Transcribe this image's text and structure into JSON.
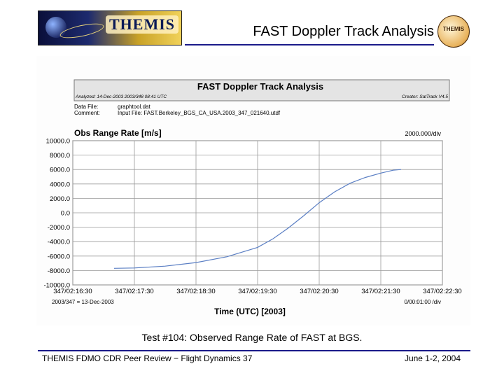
{
  "slide": {
    "logo_text": "THEMIS",
    "title": "FAST Doppler Track Analysis",
    "badge_text": "THEMIS",
    "caption": "Test #104: Observed Range Rate of FAST at BGS.",
    "footer_left": "THEMIS FDMO CDR Peer Review − Flight Dynamics 37",
    "footer_right": "June 1-2, 2004",
    "accent_color": "#1a1a8a"
  },
  "figure": {
    "banner_title": "FAST Doppler Track Analysis",
    "analyzed": "Analyzed: 14-Dec-2003 2003/348 08:41 UTC",
    "creator": "Creator: SatTrack V4.5",
    "data_file_label": "Data File:",
    "data_file_value": "graphtool.dat",
    "comment_label": "Comment:",
    "comment_value": "Input File: FAST.Berkeley_BGS_CA_USA.2003_347_021640.utdf",
    "y_scale_note": "2000.000/div",
    "date_note": "2003/347 = 13-Dec-2003",
    "x_scale_note": "0/00:01:00 /div"
  },
  "chart_data": {
    "type": "line",
    "ylabel": "Obs Range Rate [m/s]",
    "xlabel": "Time (UTC) [2003]",
    "x_ticks": [
      "347/02:16:30",
      "347/02:17:30",
      "347/02:18:30",
      "347/02:19:30",
      "347/02:20:30",
      "347/02:21:30",
      "347/02:22:30"
    ],
    "y_ticks": [
      "10000.0",
      "8000.0",
      "6000.0",
      "4000.0",
      "2000.0",
      "0.0",
      "-2000.0",
      "-4000.0",
      "-6000.0",
      "-8000.0",
      "-10000.0"
    ],
    "xlim_minutes": [
      0,
      6
    ],
    "ylim": [
      -10000,
      10000
    ],
    "grid": true,
    "line_color": "#5b7fc4",
    "series": [
      {
        "x_minutes": [
          0.67,
          1.0,
          1.5,
          2.0,
          2.5,
          3.0,
          3.25,
          3.5,
          3.75,
          4.0,
          4.25,
          4.5,
          4.75,
          5.0,
          5.2,
          5.33
        ],
        "values": [
          -7700,
          -7650,
          -7400,
          -6900,
          -6100,
          -4800,
          -3600,
          -2100,
          -400,
          1400,
          2900,
          4100,
          4900,
          5500,
          5900,
          6000
        ]
      }
    ]
  }
}
